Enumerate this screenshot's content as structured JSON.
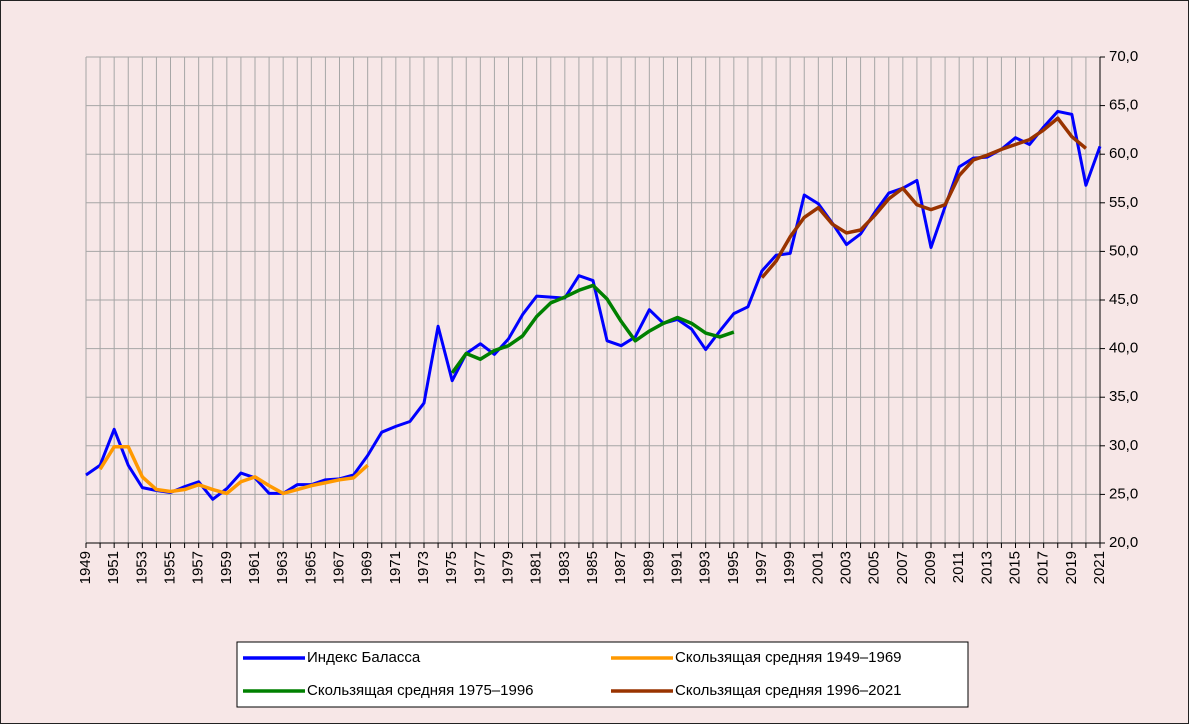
{
  "chart_data": {
    "type": "line",
    "categories": [
      "1949",
      null,
      "1951",
      null,
      "1953",
      null,
      "1955",
      null,
      "1957",
      null,
      "1959",
      null,
      "1961",
      null,
      "1963",
      null,
      "1965",
      null,
      "1967",
      null,
      "1969",
      null,
      "1971",
      null,
      "1973",
      null,
      "1975",
      null,
      "1977",
      null,
      "1979",
      null,
      "1981",
      null,
      "1983",
      null,
      "1985",
      null,
      "1987",
      null,
      "1989",
      null,
      "1991",
      null,
      "1993",
      null,
      "1995",
      null,
      "1997",
      null,
      "1999",
      null,
      "2001",
      null,
      "2003",
      null,
      "2005",
      null,
      "2007",
      null,
      "2009",
      null,
      "2011",
      null,
      "2013",
      null,
      "2015",
      null,
      "2017",
      null,
      "2019",
      null,
      "2021"
    ],
    "series": [
      {
        "name": "Индекс Баласса",
        "color": "#0000ff",
        "values": [
          27.0,
          28.0,
          31.7,
          28.0,
          25.7,
          25.4,
          25.2,
          25.8,
          26.3,
          24.5,
          25.6,
          27.2,
          26.7,
          25.1,
          25.1,
          26.0,
          26.0,
          26.5,
          26.6,
          27.0,
          29.0,
          31.4,
          32.0,
          32.5,
          34.4,
          42.3,
          36.7,
          39.5,
          40.5,
          39.4,
          41.0,
          43.5,
          45.4,
          45.3,
          45.2,
          47.5,
          47.0,
          40.8,
          40.3,
          41.2,
          44.0,
          42.6,
          43.0,
          42.0,
          39.9,
          41.8,
          43.6,
          44.3,
          48.0,
          49.6,
          49.8,
          55.8,
          54.9,
          52.9,
          50.7,
          51.8,
          54.0,
          56.0,
          56.5,
          57.3,
          50.4,
          54.6,
          58.7,
          59.6,
          59.7,
          60.5,
          61.7,
          61.0,
          62.8,
          64.4,
          64.1,
          56.8,
          60.8
        ]
      },
      {
        "name": "Скользящая средняя 1949–1969",
        "color": "#ff9900",
        "values": [
          null,
          27.6,
          29.9,
          29.9,
          26.8,
          25.5,
          25.3,
          25.5,
          26.0,
          25.5,
          25.1,
          26.3,
          26.8,
          25.9,
          25.1,
          25.5,
          25.9,
          26.2,
          26.5,
          26.7,
          28.0,
          null,
          null,
          null,
          null,
          null,
          null,
          null,
          null,
          null,
          null,
          null,
          null,
          null,
          null,
          null,
          null,
          null,
          null,
          null,
          null,
          null,
          null,
          null,
          null,
          null,
          null,
          null,
          null,
          null,
          null,
          null,
          null,
          null,
          null,
          null,
          null,
          null,
          null,
          null,
          null,
          null,
          null,
          null,
          null,
          null,
          null,
          null,
          null,
          null,
          null,
          null,
          null
        ]
      },
      {
        "name": "Скользящая средняя 1975–1996",
        "color": "#008000",
        "values": [
          null,
          null,
          null,
          null,
          null,
          null,
          null,
          null,
          null,
          null,
          null,
          null,
          null,
          null,
          null,
          null,
          null,
          null,
          null,
          null,
          null,
          null,
          null,
          null,
          null,
          null,
          37.5,
          39.5,
          38.9,
          39.8,
          40.3,
          41.3,
          43.3,
          44.7,
          45.3,
          46.0,
          46.5,
          45.1,
          42.8,
          40.8,
          41.8,
          42.6,
          43.2,
          42.6,
          41.6,
          41.2,
          41.7,
          null,
          null,
          null,
          null,
          null,
          null,
          null,
          null,
          null,
          null,
          null,
          null,
          null,
          null,
          null,
          null,
          null,
          null,
          null,
          null,
          null,
          null,
          null,
          null,
          null,
          null
        ]
      },
      {
        "name": "Скользящая средняя 1996–2021",
        "color": "#993300",
        "values": [
          null,
          null,
          null,
          null,
          null,
          null,
          null,
          null,
          null,
          null,
          null,
          null,
          null,
          null,
          null,
          null,
          null,
          null,
          null,
          null,
          null,
          null,
          null,
          null,
          null,
          null,
          null,
          null,
          null,
          null,
          null,
          null,
          null,
          null,
          null,
          null,
          null,
          null,
          null,
          null,
          null,
          null,
          null,
          null,
          null,
          null,
          null,
          null,
          47.3,
          49.0,
          51.5,
          53.5,
          54.5,
          52.8,
          51.9,
          52.2,
          53.7,
          55.4,
          56.5,
          54.8,
          54.3,
          54.8,
          57.8,
          59.4,
          59.9,
          60.5,
          61.0,
          61.5,
          62.5,
          63.7,
          61.8,
          60.6,
          null
        ]
      }
    ],
    "ylim": [
      20,
      70
    ],
    "yticks": [
      {
        "value": 20,
        "label": "20,0"
      },
      {
        "value": 25,
        "label": "25,0"
      },
      {
        "value": 30,
        "label": "30,0"
      },
      {
        "value": 35,
        "label": "35,0"
      },
      {
        "value": 40,
        "label": "40,0"
      },
      {
        "value": 45,
        "label": "45,0"
      },
      {
        "value": 50,
        "label": "50,0"
      },
      {
        "value": 55,
        "label": "55,0"
      },
      {
        "value": 60,
        "label": "60,0"
      },
      {
        "value": 65,
        "label": "65,0"
      },
      {
        "value": 70,
        "label": "70,0"
      }
    ],
    "grid": true,
    "legend": "bottom"
  }
}
